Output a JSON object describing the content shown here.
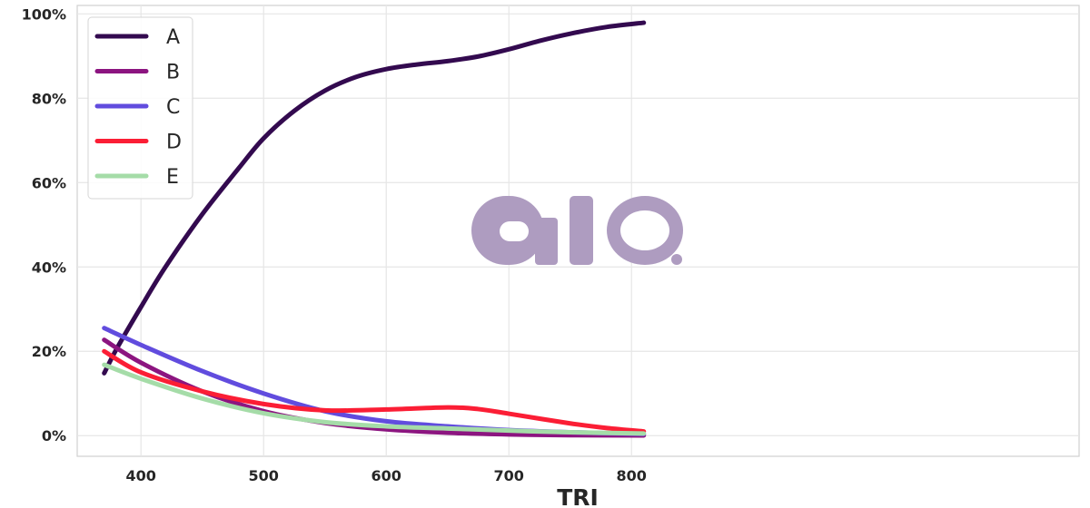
{
  "chart_data": {
    "type": "line",
    "title": "",
    "xlabel": "TRI",
    "ylabel": "",
    "xlim": [
      348,
      1165
    ],
    "ylim": [
      -4.9,
      102
    ],
    "xticks": [
      400,
      500,
      600,
      700,
      800
    ],
    "xtick_labels": [
      "400",
      "500",
      "600",
      "700",
      "800"
    ],
    "yticks": [
      0,
      20,
      40,
      60,
      80,
      100
    ],
    "ytick_labels": [
      "0%",
      "20%",
      "40%",
      "60%",
      "80%",
      "100%"
    ],
    "grid": true,
    "legend_position": "top-left",
    "watermark": "aio.",
    "watermark_color": "#ae9cc0",
    "series": [
      {
        "name": "A",
        "color": "#330a4f",
        "x": [
          370,
          380,
          400,
          420,
          450,
          480,
          500,
          525,
          550,
          575,
          600,
          625,
          650,
          675,
          700,
          725,
          750,
          780,
          810
        ],
        "y": [
          14.8,
          20.5,
          30.5,
          40,
          52.5,
          63.5,
          70.5,
          77,
          81.8,
          85,
          86.9,
          88,
          88.8,
          89.9,
          91.6,
          93.6,
          95.3,
          96.9,
          97.9
        ]
      },
      {
        "name": "B",
        "color": "#8c1580",
        "x": [
          370,
          400,
          450,
          500,
          550,
          600,
          650,
          700,
          750,
          810
        ],
        "y": [
          22.7,
          17.3,
          10.5,
          5.8,
          3,
          1.5,
          0.7,
          0.3,
          0.1,
          0.05
        ]
      },
      {
        "name": "C",
        "color": "#614cde",
        "x": [
          370,
          400,
          450,
          500,
          550,
          600,
          650,
          700,
          750,
          810
        ],
        "y": [
          25.5,
          21.5,
          15.3,
          10,
          5.8,
          3.4,
          2.2,
          1.3,
          0.8,
          0.4
        ]
      },
      {
        "name": "D",
        "color": "#fb1e35",
        "x": [
          370,
          400,
          450,
          500,
          550,
          600,
          650,
          675,
          700,
          750,
          780,
          810
        ],
        "y": [
          20,
          15,
          10.5,
          7.5,
          6,
          6.2,
          6.7,
          6.3,
          5.2,
          2.9,
          1.8,
          1
        ]
      },
      {
        "name": "E",
        "color": "#a5dca8",
        "x": [
          370,
          400,
          450,
          500,
          550,
          600,
          650,
          700,
          750,
          810
        ],
        "y": [
          16.8,
          13.5,
          8.8,
          5.3,
          3.2,
          2.2,
          1.7,
          1.2,
          0.8,
          0.5
        ]
      }
    ]
  }
}
